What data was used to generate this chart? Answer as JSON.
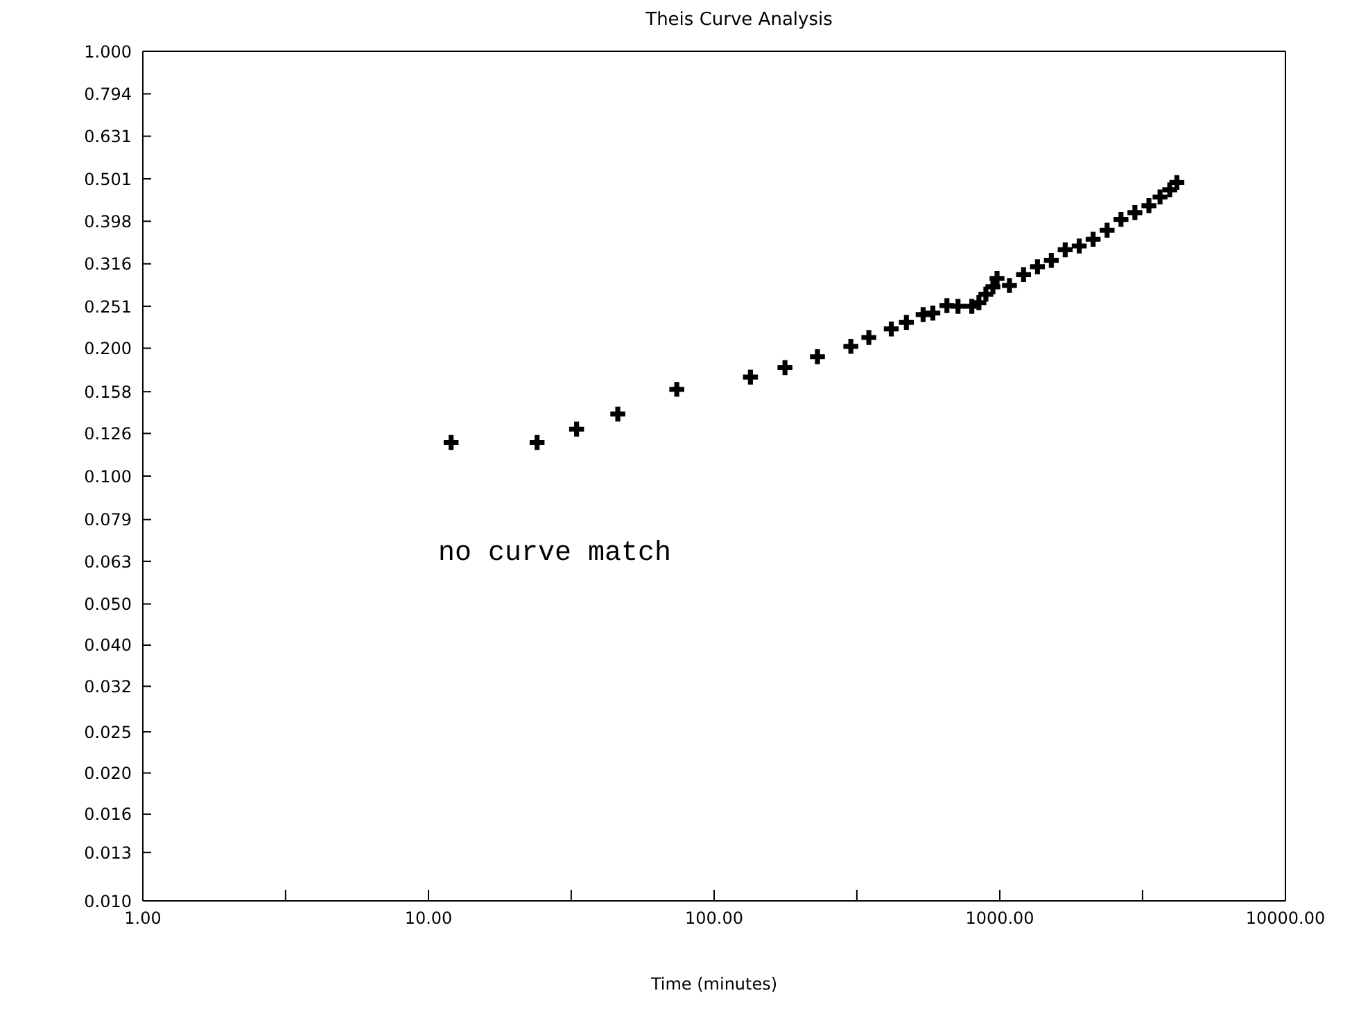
{
  "chart_data": {
    "type": "scatter",
    "title": "Theis Curve Analysis",
    "xlabel": "Time (minutes)",
    "log": "xy",
    "marker": "cross",
    "xlim": [
      1,
      10000
    ],
    "xticks": [
      {
        "value": 1,
        "label": "1.00"
      },
      {
        "value": 3.16,
        "label": null
      },
      {
        "value": 10,
        "label": "10.00"
      },
      {
        "value": 31.6,
        "label": null
      },
      {
        "value": 100,
        "label": "100.00"
      },
      {
        "value": 316,
        "label": null
      },
      {
        "value": 1000,
        "label": "1000.00"
      },
      {
        "value": 3160,
        "label": null
      },
      {
        "value": 10000,
        "label": "10000.00"
      }
    ],
    "ylim": [
      0.01,
      1
    ],
    "yticks": [
      {
        "value": 0.01,
        "label": "0.010"
      },
      {
        "value": 0.013,
        "label": "0.013"
      },
      {
        "value": 0.016,
        "label": "0.016"
      },
      {
        "value": 0.02,
        "label": "0.020"
      },
      {
        "value": 0.025,
        "label": "0.025"
      },
      {
        "value": 0.032,
        "label": "0.032"
      },
      {
        "value": 0.04,
        "label": "0.040"
      },
      {
        "value": 0.05,
        "label": "0.050"
      },
      {
        "value": 0.063,
        "label": "0.063"
      },
      {
        "value": 0.079,
        "label": "0.079"
      },
      {
        "value": 0.1,
        "label": "0.100"
      },
      {
        "value": 0.126,
        "label": "0.126"
      },
      {
        "value": 0.158,
        "label": "0.158"
      },
      {
        "value": 0.2,
        "label": "0.200"
      },
      {
        "value": 0.251,
        "label": "0.251"
      },
      {
        "value": 0.316,
        "label": "0.316"
      },
      {
        "value": 0.398,
        "label": "0.398"
      },
      {
        "value": 0.501,
        "label": "0.501"
      },
      {
        "value": 0.631,
        "label": "0.631"
      },
      {
        "value": 0.794,
        "label": "0.794"
      },
      {
        "value": 1,
        "label": "1.000"
      }
    ],
    "annotations": [
      "no curve match"
    ],
    "series": [
      {
        "color": "#000000",
        "x": [
          12,
          24,
          33,
          46,
          74,
          134,
          177,
          230,
          301,
          348,
          417,
          471,
          539,
          583,
          653,
          714,
          798,
          845,
          894,
          946,
          978,
          1081,
          1211,
          1355,
          1515,
          1694,
          1897,
          2122,
          2375,
          2656,
          2972,
          3327,
          3639,
          3936,
          4168
        ],
        "values": [
          0.12,
          0.12,
          0.129,
          0.14,
          0.16,
          0.171,
          0.18,
          0.191,
          0.202,
          0.212,
          0.222,
          0.23,
          0.24,
          0.242,
          0.252,
          0.251,
          0.251,
          0.256,
          0.268,
          0.279,
          0.292,
          0.281,
          0.298,
          0.311,
          0.322,
          0.341,
          0.348,
          0.361,
          0.379,
          0.402,
          0.417,
          0.433,
          0.454,
          0.472,
          0.491
        ]
      }
    ]
  }
}
